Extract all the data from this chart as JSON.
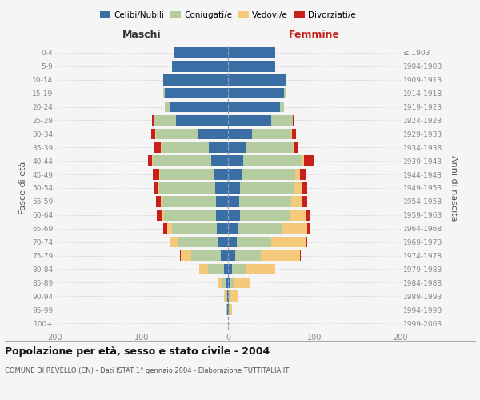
{
  "age_groups": [
    "0-4",
    "5-9",
    "10-14",
    "15-19",
    "20-24",
    "25-29",
    "30-34",
    "35-39",
    "40-44",
    "45-49",
    "50-54",
    "55-59",
    "60-64",
    "65-69",
    "70-74",
    "75-79",
    "80-84",
    "85-89",
    "90-94",
    "95-99",
    "100+"
  ],
  "birth_years": [
    "1999-2003",
    "1994-1998",
    "1989-1993",
    "1984-1988",
    "1979-1983",
    "1974-1978",
    "1969-1973",
    "1964-1968",
    "1959-1963",
    "1954-1958",
    "1949-1953",
    "1944-1948",
    "1939-1943",
    "1934-1938",
    "1929-1933",
    "1924-1928",
    "1919-1923",
    "1914-1918",
    "1909-1913",
    "1904-1908",
    "≤ 1903"
  ],
  "maschi": {
    "celibi": [
      62,
      65,
      75,
      73,
      68,
      60,
      35,
      22,
      19,
      17,
      15,
      14,
      14,
      13,
      12,
      8,
      5,
      2,
      1,
      1,
      0
    ],
    "coniugati": [
      0,
      0,
      0,
      2,
      5,
      25,
      48,
      55,
      68,
      62,
      65,
      62,
      60,
      52,
      45,
      35,
      18,
      5,
      2,
      1,
      0
    ],
    "vedovi": [
      0,
      0,
      0,
      0,
      0,
      1,
      1,
      1,
      1,
      1,
      1,
      2,
      3,
      5,
      10,
      12,
      10,
      5,
      2,
      1,
      0
    ],
    "divorziati": [
      0,
      0,
      0,
      0,
      0,
      2,
      5,
      8,
      5,
      7,
      5,
      5,
      5,
      5,
      1,
      1,
      0,
      0,
      0,
      0,
      0
    ]
  },
  "femmine": {
    "nubili": [
      55,
      55,
      68,
      65,
      60,
      50,
      28,
      20,
      18,
      16,
      14,
      13,
      14,
      12,
      10,
      8,
      5,
      2,
      1,
      1,
      0
    ],
    "coniugate": [
      0,
      0,
      0,
      2,
      5,
      25,
      45,
      55,
      68,
      62,
      63,
      60,
      58,
      50,
      40,
      30,
      15,
      5,
      2,
      1,
      0
    ],
    "vedove": [
      0,
      0,
      0,
      0,
      0,
      0,
      1,
      1,
      2,
      5,
      8,
      12,
      18,
      30,
      40,
      45,
      35,
      18,
      8,
      3,
      0
    ],
    "divorziate": [
      0,
      0,
      0,
      0,
      0,
      2,
      5,
      5,
      12,
      8,
      7,
      7,
      5,
      2,
      2,
      1,
      0,
      0,
      0,
      0,
      0
    ]
  },
  "colors": {
    "celibi": "#3a6fa5",
    "coniugati": "#b5cca0",
    "vedovi": "#f5c97a",
    "divorziati": "#c8201a"
  },
  "xlim": 200,
  "title": "Popolazione per età, sesso e stato civile - 2004",
  "subtitle": "COMUNE DI REVELLO (CN) - Dati ISTAT 1° gennaio 2004 - Elaborazione TUTTITALIA.IT",
  "ylabel_left": "Fasce di età",
  "ylabel_right": "Anni di nascita",
  "xlabel_left": "Maschi",
  "xlabel_right": "Femmine",
  "maschi_color": "#333333",
  "femmine_color": "#c8201a",
  "background_color": "#f5f5f5",
  "grid_color": "#cccccc",
  "tick_color": "#888888"
}
